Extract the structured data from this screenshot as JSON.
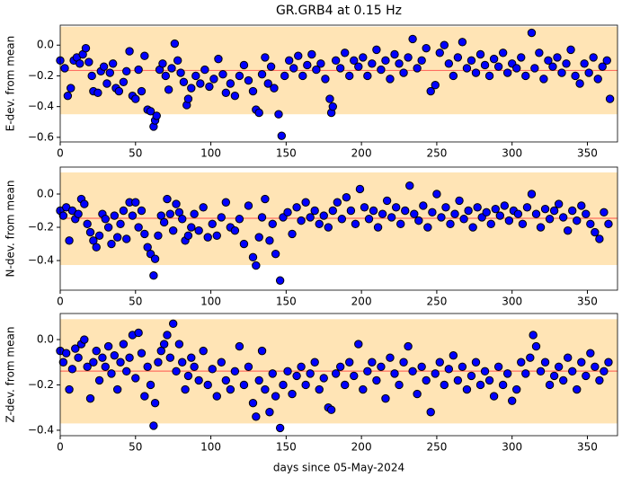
{
  "chart_data": [
    {
      "type": "scatter",
      "title": "GR.GRB4 at 0.15 Hz",
      "ylabel": "E-dev. from mean",
      "color": "#0000ff",
      "edgecolor": "#000000",
      "band": [
        -0.45,
        0.12
      ],
      "band_color": "#ffe4b5",
      "mean": -0.165,
      "mean_color": "#ff6f61",
      "xlim": [
        0,
        370
      ],
      "ylim": [
        -0.63,
        0.13
      ],
      "xticks": [
        0,
        50,
        100,
        150,
        200,
        250,
        300,
        350
      ],
      "yticks": [
        {
          "value": 0,
          "label": "0.0"
        },
        {
          "value": -0.2,
          "label": "−0.2"
        },
        {
          "value": -0.4,
          "label": "−0.4"
        },
        {
          "value": -0.6,
          "label": "−0.6"
        }
      ],
      "x": [
        0,
        3,
        5,
        7,
        9,
        11,
        13,
        15,
        17,
        19,
        21,
        22,
        25,
        27,
        29,
        31,
        33,
        35,
        37,
        39,
        42,
        44,
        46,
        48,
        50,
        52,
        54,
        56,
        58,
        60,
        62,
        63,
        64,
        66,
        68,
        70,
        72,
        74,
        76,
        78,
        80,
        82,
        84,
        85,
        87,
        90,
        93,
        96,
        99,
        102,
        105,
        108,
        110,
        113,
        116,
        119,
        122,
        125,
        128,
        130,
        132,
        134,
        136,
        138,
        140,
        142,
        145,
        147,
        149,
        152,
        155,
        158,
        161,
        164,
        167,
        170,
        173,
        176,
        179,
        180,
        181,
        183,
        186,
        189,
        192,
        195,
        198,
        201,
        204,
        207,
        210,
        213,
        216,
        219,
        222,
        225,
        228,
        231,
        234,
        237,
        240,
        243,
        246,
        249,
        252,
        255,
        258,
        261,
        264,
        267,
        270,
        273,
        276,
        279,
        282,
        285,
        288,
        291,
        294,
        297,
        300,
        303,
        306,
        309,
        313,
        315,
        318,
        321,
        324,
        327,
        330,
        333,
        336,
        339,
        342,
        345,
        348,
        351,
        354,
        357,
        360,
        363,
        365
      ],
      "values": [
        -0.1,
        -0.15,
        -0.33,
        -0.28,
        -0.1,
        -0.08,
        -0.12,
        -0.06,
        -0.02,
        -0.11,
        -0.2,
        -0.3,
        -0.31,
        -0.17,
        -0.14,
        -0.25,
        -0.18,
        -0.12,
        -0.28,
        -0.3,
        -0.24,
        -0.17,
        -0.04,
        -0.33,
        -0.35,
        -0.16,
        -0.3,
        -0.07,
        -0.42,
        -0.43,
        -0.53,
        -0.49,
        -0.46,
        -0.16,
        -0.12,
        -0.2,
        -0.29,
        -0.15,
        0.01,
        -0.1,
        -0.18,
        -0.24,
        -0.39,
        -0.35,
        -0.28,
        -0.2,
        -0.25,
        -0.16,
        -0.27,
        -0.22,
        -0.09,
        -0.19,
        -0.31,
        -0.25,
        -0.33,
        -0.2,
        -0.13,
        -0.23,
        -0.3,
        -0.42,
        -0.44,
        -0.19,
        -0.08,
        -0.25,
        -0.14,
        -0.28,
        -0.45,
        -0.59,
        -0.2,
        -0.1,
        -0.15,
        -0.07,
        -0.2,
        -0.13,
        -0.06,
        -0.16,
        -0.12,
        -0.22,
        -0.35,
        -0.44,
        -0.4,
        -0.1,
        -0.15,
        -0.05,
        -0.2,
        -0.1,
        -0.14,
        -0.08,
        -0.2,
        -0.12,
        -0.03,
        -0.16,
        -0.1,
        -0.22,
        -0.06,
        -0.12,
        -0.18,
        -0.08,
        0.04,
        -0.15,
        -0.1,
        -0.02,
        -0.3,
        -0.26,
        -0.05,
        0.0,
        -0.12,
        -0.2,
        -0.08,
        0.02,
        -0.15,
        -0.1,
        -0.18,
        -0.06,
        -0.13,
        -0.2,
        -0.09,
        -0.14,
        -0.05,
        -0.18,
        -0.12,
        -0.15,
        -0.08,
        -0.2,
        0.08,
        -0.15,
        -0.05,
        -0.22,
        -0.1,
        -0.14,
        -0.08,
        -0.18,
        -0.12,
        -0.03,
        -0.2,
        -0.25,
        -0.12,
        -0.18,
        -0.08,
        -0.22,
        -0.14,
        -0.1,
        -0.35
      ]
    },
    {
      "type": "scatter",
      "ylabel": "N-dev. from mean",
      "color": "#0000ff",
      "edgecolor": "#000000",
      "band": [
        -0.427,
        0.13
      ],
      "band_color": "#ffe4b5",
      "mean": -0.146,
      "mean_color": "#ff6f61",
      "xlim": [
        0,
        370
      ],
      "ylim": [
        -0.578,
        0.162
      ],
      "xticks": [
        0,
        50,
        100,
        150,
        200,
        250,
        300,
        350
      ],
      "yticks": [
        {
          "value": 0,
          "label": "0.0"
        },
        {
          "value": -0.2,
          "label": "−0.2"
        },
        {
          "value": -0.4,
          "label": "−0.4"
        }
      ],
      "x": [
        0,
        2,
        4,
        6,
        8,
        10,
        12,
        14,
        16,
        18,
        20,
        22,
        24,
        26,
        28,
        30,
        32,
        34,
        36,
        38,
        40,
        42,
        44,
        46,
        48,
        50,
        52,
        54,
        56,
        58,
        60,
        62,
        63,
        65,
        67,
        69,
        71,
        73,
        75,
        77,
        79,
        81,
        83,
        85,
        87,
        89,
        92,
        95,
        98,
        101,
        104,
        107,
        110,
        113,
        116,
        119,
        122,
        125,
        128,
        130,
        132,
        134,
        136,
        139,
        141,
        143,
        146,
        148,
        151,
        154,
        157,
        160,
        163,
        166,
        169,
        172,
        175,
        178,
        181,
        184,
        187,
        190,
        193,
        196,
        199,
        202,
        205,
        208,
        211,
        214,
        217,
        220,
        223,
        226,
        229,
        232,
        235,
        238,
        241,
        244,
        247,
        250,
        253,
        256,
        259,
        262,
        265,
        268,
        271,
        274,
        277,
        280,
        283,
        286,
        289,
        292,
        295,
        298,
        301,
        304,
        307,
        310,
        313,
        316,
        319,
        322,
        325,
        328,
        331,
        334,
        337,
        340,
        343,
        346,
        349,
        352,
        355,
        358,
        361,
        364
      ],
      "values": [
        -0.1,
        -0.13,
        -0.08,
        -0.28,
        -0.1,
        -0.15,
        -0.12,
        -0.03,
        -0.06,
        -0.18,
        -0.23,
        -0.28,
        -0.32,
        -0.25,
        -0.12,
        -0.15,
        -0.2,
        -0.3,
        -0.13,
        -0.26,
        -0.18,
        -0.1,
        -0.27,
        -0.05,
        -0.13,
        -0.05,
        -0.2,
        -0.1,
        -0.24,
        -0.32,
        -0.36,
        -0.49,
        -0.39,
        -0.25,
        -0.13,
        -0.17,
        -0.03,
        -0.12,
        -0.22,
        -0.06,
        -0.11,
        -0.15,
        -0.28,
        -0.25,
        -0.2,
        -0.12,
        -0.22,
        -0.08,
        -0.26,
        -0.18,
        -0.25,
        -0.14,
        -0.05,
        -0.2,
        -0.22,
        -0.15,
        -0.3,
        -0.07,
        -0.38,
        -0.43,
        -0.26,
        -0.14,
        -0.03,
        -0.28,
        -0.18,
        -0.36,
        -0.52,
        -0.14,
        -0.11,
        -0.24,
        -0.08,
        -0.16,
        -0.05,
        -0.14,
        -0.1,
        -0.18,
        -0.13,
        -0.2,
        -0.1,
        -0.05,
        -0.15,
        -0.02,
        -0.1,
        -0.18,
        0.03,
        -0.08,
        -0.15,
        -0.1,
        -0.2,
        -0.12,
        -0.04,
        -0.14,
        -0.08,
        -0.18,
        -0.1,
        0.05,
        -0.12,
        -0.16,
        -0.07,
        -0.2,
        -0.11,
        0.0,
        -0.14,
        -0.08,
        -0.18,
        -0.12,
        -0.04,
        -0.15,
        -0.1,
        -0.2,
        -0.08,
        -0.14,
        -0.11,
        -0.18,
        -0.09,
        -0.13,
        -0.07,
        -0.16,
        -0.1,
        -0.12,
        -0.18,
        -0.08,
        0.0,
        -0.12,
        -0.2,
        -0.09,
        -0.15,
        -0.1,
        -0.06,
        -0.14,
        -0.22,
        -0.1,
        -0.16,
        -0.07,
        -0.12,
        -0.18,
        -0.23,
        -0.27,
        -0.11,
        -0.18
      ]
    },
    {
      "type": "scatter",
      "ylabel": "Z-dev. from mean",
      "xlabel": "days since 05-May-2024",
      "color": "#0000ff",
      "edgecolor": "#000000",
      "band": [
        -0.37,
        0.09
      ],
      "band_color": "#ffe4b5",
      "mean": -0.139,
      "mean_color": "#ff6f61",
      "xlim": [
        0,
        370
      ],
      "ylim": [
        -0.424,
        0.115
      ],
      "xticks": [
        0,
        50,
        100,
        150,
        200,
        250,
        300,
        350
      ],
      "yticks": [
        {
          "value": 0,
          "label": "0.0"
        },
        {
          "value": -0.2,
          "label": "−0.2"
        },
        {
          "value": -0.4,
          "label": "−0.4"
        }
      ],
      "x": [
        0,
        2,
        4,
        6,
        8,
        10,
        12,
        14,
        16,
        18,
        20,
        22,
        24,
        26,
        28,
        30,
        32,
        34,
        36,
        38,
        40,
        42,
        44,
        46,
        48,
        50,
        52,
        54,
        56,
        58,
        60,
        62,
        63,
        65,
        67,
        69,
        71,
        73,
        75,
        77,
        79,
        81,
        83,
        85,
        87,
        89,
        92,
        95,
        98,
        101,
        104,
        107,
        110,
        113,
        116,
        119,
        122,
        125,
        128,
        130,
        132,
        134,
        136,
        139,
        141,
        143,
        146,
        148,
        151,
        154,
        157,
        160,
        163,
        166,
        169,
        172,
        175,
        178,
        180,
        183,
        186,
        189,
        192,
        195,
        198,
        201,
        204,
        207,
        210,
        213,
        216,
        219,
        222,
        225,
        228,
        231,
        234,
        237,
        240,
        243,
        246,
        249,
        252,
        255,
        258,
        261,
        264,
        267,
        270,
        273,
        276,
        279,
        282,
        285,
        288,
        291,
        294,
        297,
        300,
        303,
        306,
        309,
        312,
        314,
        316,
        319,
        322,
        325,
        328,
        331,
        334,
        337,
        340,
        343,
        346,
        349,
        352,
        355,
        358,
        361,
        364
      ],
      "values": [
        -0.05,
        -0.1,
        -0.06,
        -0.22,
        -0.13,
        -0.04,
        -0.08,
        -0.02,
        0.0,
        -0.12,
        -0.26,
        -0.1,
        -0.05,
        -0.18,
        -0.08,
        -0.12,
        -0.03,
        -0.15,
        -0.07,
        -0.22,
        -0.1,
        -0.02,
        -0.14,
        -0.08,
        0.02,
        -0.17,
        0.03,
        -0.06,
        -0.25,
        -0.12,
        -0.2,
        -0.38,
        -0.28,
        -0.1,
        -0.05,
        -0.02,
        0.02,
        -0.08,
        0.07,
        -0.14,
        -0.02,
        -0.1,
        -0.22,
        -0.16,
        -0.08,
        -0.12,
        -0.18,
        -0.05,
        -0.2,
        -0.13,
        -0.25,
        -0.1,
        -0.18,
        -0.22,
        -0.14,
        -0.03,
        -0.2,
        -0.12,
        -0.28,
        -0.34,
        -0.18,
        -0.05,
        -0.22,
        -0.32,
        -0.15,
        -0.25,
        -0.39,
        -0.2,
        -0.14,
        -0.24,
        -0.16,
        -0.12,
        -0.2,
        -0.15,
        -0.1,
        -0.22,
        -0.17,
        -0.3,
        -0.31,
        -0.15,
        -0.12,
        -0.2,
        -0.1,
        -0.16,
        -0.02,
        -0.22,
        -0.14,
        -0.1,
        -0.18,
        -0.12,
        -0.26,
        -0.08,
        -0.15,
        -0.2,
        -0.1,
        -0.03,
        -0.14,
        -0.24,
        -0.12,
        -0.18,
        -0.32,
        -0.15,
        -0.1,
        -0.2,
        -0.13,
        -0.07,
        -0.18,
        -0.12,
        -0.22,
        -0.16,
        -0.1,
        -0.2,
        -0.14,
        -0.18,
        -0.25,
        -0.12,
        -0.2,
        -0.15,
        -0.27,
        -0.22,
        -0.1,
        -0.15,
        -0.08,
        0.02,
        -0.03,
        -0.14,
        -0.1,
        -0.2,
        -0.16,
        -0.12,
        -0.18,
        -0.08,
        -0.14,
        -0.22,
        -0.1,
        -0.16,
        -0.06,
        -0.12,
        -0.18,
        -0.14,
        -0.1
      ]
    }
  ]
}
